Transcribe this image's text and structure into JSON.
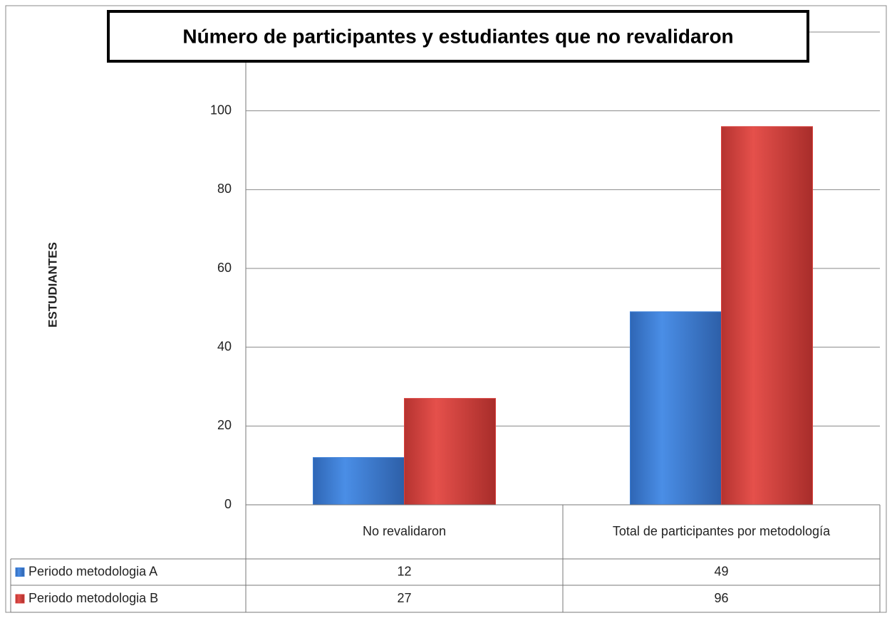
{
  "chart_data": {
    "type": "bar",
    "title": "Número de participantes y estudiantes que no revalidaron",
    "y_label": "ESTUDIANTES",
    "categories": [
      "No revalidaron",
      "Total de participantes por metodología"
    ],
    "series": [
      {
        "name": "Periodo metodologia A",
        "color": "#3b7fd9",
        "values": [
          12,
          49
        ]
      },
      {
        "name": "Periodo metodologia B",
        "color": "#d9403c",
        "values": [
          27,
          96
        ]
      }
    ],
    "ylim": [
      0,
      120
    ],
    "yticks": [
      0,
      20,
      40,
      60,
      80,
      100
    ],
    "grid": true,
    "data_table": true
  }
}
